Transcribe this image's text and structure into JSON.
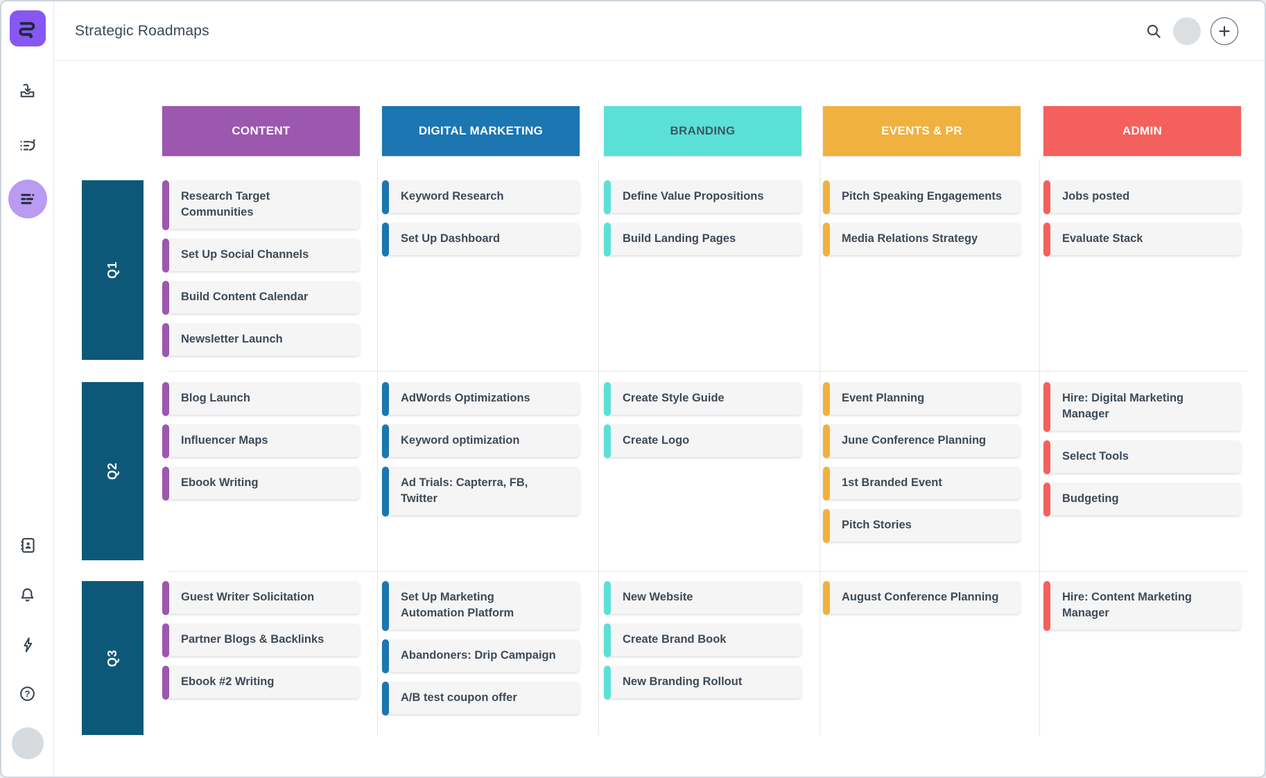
{
  "header": {
    "title": "Strategic Roadmaps",
    "actions": [
      {
        "name": "search-icon"
      },
      {
        "name": "user-avatar"
      },
      {
        "name": "add-button",
        "glyph": "+"
      }
    ]
  },
  "sidebar": {
    "logo": "roadmunk-logo",
    "top_icons": [
      {
        "name": "import-tray-icon"
      },
      {
        "name": "list-history-icon"
      },
      {
        "name": "roadmap-view-icon",
        "active": true
      }
    ],
    "bottom_icons": [
      {
        "name": "address-book-icon"
      },
      {
        "name": "notifications-bell-icon"
      },
      {
        "name": "lightning-icon"
      },
      {
        "name": "help-icon"
      }
    ],
    "avatar": "user-avatar"
  },
  "board": {
    "row_label_bg": "#0D5878",
    "columns": [
      {
        "label": "CONTENT",
        "color": "#9C57AE",
        "text_color": "#FFFFFF"
      },
      {
        "label": "DIGITAL MARKETING",
        "color": "#1B76B1",
        "text_color": "#FFFFFF"
      },
      {
        "label": "BRANDING",
        "color": "#5BE0D7",
        "text_color": "#3A5A5F"
      },
      {
        "label": "EVENTS & PR",
        "color": "#F1B13F",
        "text_color": "#FFFFFF"
      },
      {
        "label": "ADMIN",
        "color": "#F4605D",
        "text_color": "#FFFFFF"
      }
    ],
    "rows": [
      {
        "label": "Q1",
        "cells": [
          [
            "Research Target\nCommunities",
            "Set Up Social Channels",
            "Build Content Calendar",
            "Newsletter Launch"
          ],
          [
            "Keyword Research",
            "Set Up Dashboard"
          ],
          [
            "Define Value Propositions",
            "Build Landing Pages"
          ],
          [
            "Pitch Speaking Engagements",
            "Media Relations Strategy"
          ],
          [
            "Jobs posted",
            "Evaluate Stack"
          ]
        ]
      },
      {
        "label": "Q2",
        "cells": [
          [
            "Blog Launch",
            "Influencer Maps",
            "Ebook Writing"
          ],
          [
            "AdWords Optimizations",
            "Keyword optimization",
            "Ad Trials: Capterra, FB,\nTwitter"
          ],
          [
            "Create Style Guide",
            "Create Logo"
          ],
          [
            "Event Planning",
            "June Conference Planning",
            "1st Branded Event",
            "Pitch Stories"
          ],
          [
            "Hire: Digital Marketing\nManager",
            "Select Tools",
            "Budgeting"
          ]
        ]
      },
      {
        "label": "Q3",
        "cells": [
          [
            "Guest Writer Solicitation",
            "Partner Blogs & Backlinks",
            "Ebook #2 Writing"
          ],
          [
            "Set Up Marketing\nAutomation Platform",
            "Abandoners: Drip Campaign",
            "A/B test coupon offer"
          ],
          [
            "New Website",
            "Create Brand Book",
            "New Branding Rollout"
          ],
          [
            "August Conference Planning"
          ],
          [
            "Hire: Content Marketing\nManager"
          ]
        ]
      }
    ]
  }
}
